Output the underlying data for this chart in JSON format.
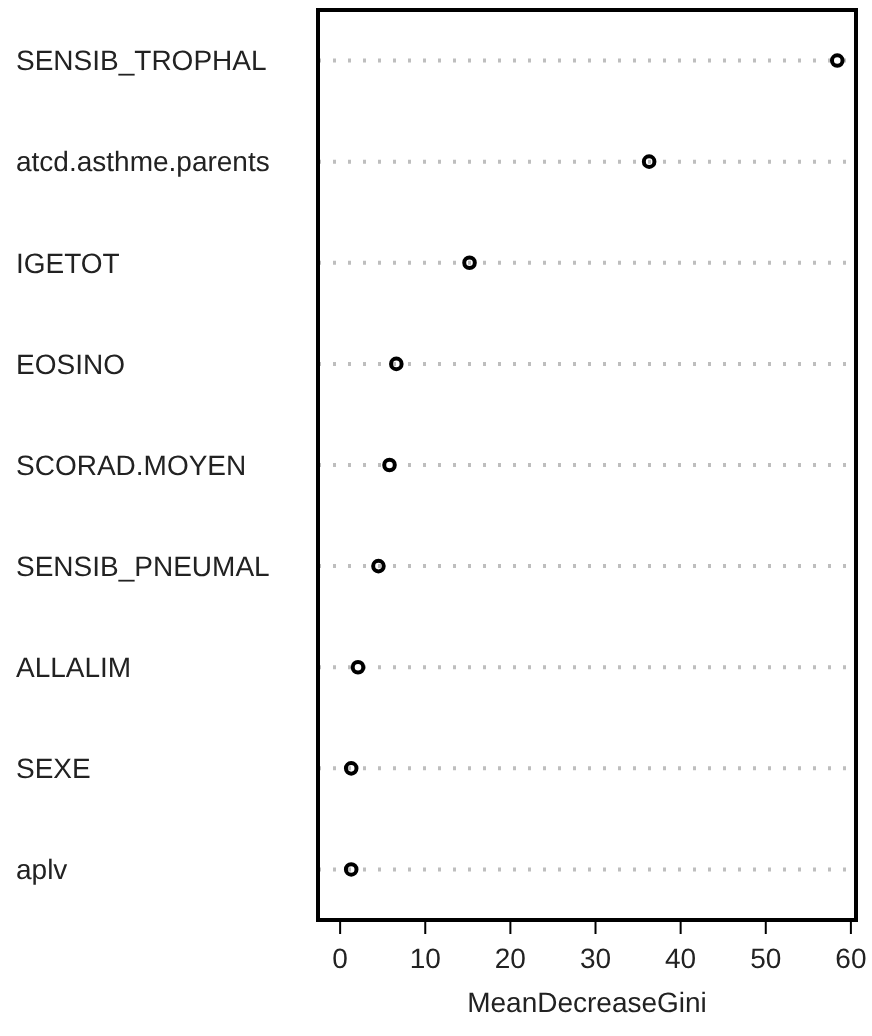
{
  "chart_data": {
    "type": "scatter",
    "orientation": "horizontal",
    "xlabel": "MeanDecreaseGini",
    "categories": [
      "SENSIB_TROPHAL",
      "atcd.asthme.parents",
      "IGETOT",
      "EOSINO",
      "SCORAD.MOYEN",
      "SENSIB_PNEUMAL",
      "ALLALIM",
      "SEXE",
      "aplv"
    ],
    "values": [
      58.4,
      36.3,
      15.2,
      6.6,
      5.8,
      4.5,
      2.1,
      1.3,
      1.3
    ],
    "color": "#000000",
    "marker": "circle",
    "grid": "y",
    "xlim": [
      -2.6,
      60.6
    ],
    "xticks": [
      0,
      10,
      20,
      30,
      40,
      50,
      60
    ]
  }
}
